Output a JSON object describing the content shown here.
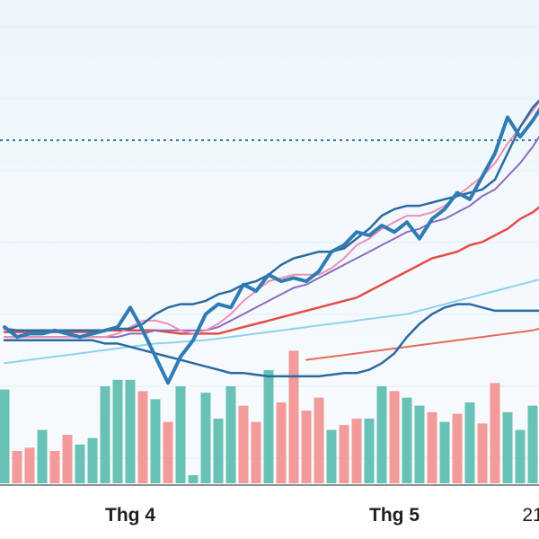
{
  "chart_data": {
    "type": "line",
    "title": "",
    "xlabel": "",
    "ylabel": "",
    "grid": true,
    "x_tick_labels": [
      {
        "label": "Thg 4",
        "index": 10,
        "bold": true
      },
      {
        "label": "Thg 5",
        "index": 31,
        "bold": true
      },
      {
        "label": "21",
        "index": 42,
        "bold": false
      }
    ],
    "price_range": [
      0,
      100
    ],
    "volume_range": [
      0,
      100
    ],
    "reference_level": 86,
    "colors": {
      "price": "#2f7bb3",
      "bollinger": "#2a6aa3",
      "ma_pink": "#ef8fb2",
      "ma_purple": "#8c6bbd",
      "ma_red": "#e54b48",
      "ma_lightblue": "#8fd2ef",
      "ma_coral": "#e86a5e",
      "vol_up": "#68c2b5",
      "vol_down": "#f39a9a",
      "reference": "#2f7bb3"
    },
    "series": [
      {
        "key": "price",
        "width": 4,
        "values": [
          29,
          26,
          27,
          27,
          28,
          27,
          26,
          27,
          28,
          29,
          35,
          28,
          20,
          12,
          20,
          25,
          33,
          36,
          35,
          42,
          40,
          45,
          43,
          44,
          43,
          46,
          52,
          54,
          58,
          57,
          60,
          58,
          61,
          56,
          62,
          65,
          70,
          68,
          75,
          82,
          93,
          87,
          92,
          98
        ]
      },
      {
        "key": "bb_upper",
        "width": 2.5,
        "values": [
          28.5,
          28,
          28,
          28,
          28,
          28,
          28,
          28,
          28,
          28.5,
          28.5,
          30,
          33,
          35,
          36,
          36,
          37,
          39,
          40,
          42,
          43,
          45,
          48,
          50,
          51,
          52,
          52,
          53,
          56,
          59,
          63,
          65,
          66,
          66,
          67,
          68,
          69,
          70,
          71,
          74,
          82,
          90,
          96,
          100
        ]
      },
      {
        "key": "bb_lower",
        "width": 2.5,
        "values": [
          25,
          25,
          25,
          25,
          25,
          25,
          25,
          25,
          24,
          24,
          23,
          22,
          21,
          20,
          19,
          18,
          17,
          16,
          15,
          15,
          14.5,
          14,
          14,
          14,
          14,
          14,
          14.5,
          15,
          15,
          16,
          18,
          21,
          26,
          30,
          33,
          35,
          36,
          36,
          35,
          34,
          34,
          34,
          34,
          34
        ]
      },
      {
        "key": "ma_pink",
        "width": 2,
        "values": [
          26,
          26,
          26,
          26,
          26,
          26,
          26,
          26,
          26,
          27,
          29,
          31,
          31,
          30,
          28,
          27,
          28,
          30,
          33,
          37,
          40,
          43,
          44,
          45,
          45,
          45,
          47,
          50,
          54,
          56,
          59,
          61,
          63,
          63,
          64,
          66,
          69,
          72,
          75,
          79,
          85,
          90,
          95,
          100
        ]
      },
      {
        "key": "ma_purple",
        "width": 2,
        "values": [
          26,
          26,
          26,
          26,
          26,
          26,
          26,
          26,
          26,
          26,
          27,
          27,
          28,
          28,
          28,
          28,
          28,
          29,
          31,
          33,
          35,
          37,
          39,
          41,
          42,
          44,
          46,
          48,
          50,
          52,
          54,
          56,
          58,
          59,
          61,
          62,
          64,
          66,
          69,
          71,
          75,
          79,
          84,
          90
        ]
      },
      {
        "key": "ma_red",
        "width": 2.5,
        "values": [
          27.5,
          27.5,
          27.5,
          27.5,
          27.5,
          27.5,
          27.5,
          27.5,
          28,
          28,
          28,
          28,
          28,
          27.5,
          27,
          27,
          27,
          27,
          28,
          29,
          30,
          31,
          32,
          33,
          34,
          35,
          36,
          37,
          38,
          40,
          42,
          44,
          46,
          48,
          50,
          51,
          52,
          54,
          55,
          57,
          59,
          62,
          64,
          67
        ]
      },
      {
        "key": "ma_lightblue",
        "width": 2,
        "values": [
          18,
          18.5,
          19,
          19.5,
          20,
          20.5,
          21,
          21.5,
          22,
          22.5,
          23,
          23.5,
          24,
          24.2,
          24.5,
          24.8,
          25,
          25.5,
          26,
          26.5,
          27,
          27.5,
          28,
          28.5,
          29,
          29.5,
          30,
          30.5,
          31,
          31.5,
          32,
          32.5,
          33,
          34,
          35,
          36,
          37,
          38,
          39,
          40,
          41,
          42,
          43,
          44
        ]
      },
      {
        "key": "ma_coral",
        "width": 2,
        "start": 24,
        "values": [
          19,
          19.5,
          20,
          20.5,
          21,
          21.5,
          22,
          22.5,
          23,
          23.5,
          24,
          24.5,
          25,
          25.5,
          26,
          26.5,
          27,
          27.5,
          28,
          29
        ]
      }
    ],
    "volume": {
      "values": [
        58,
        20,
        22,
        33,
        20,
        30,
        24,
        28,
        60,
        64,
        64,
        57,
        52,
        38,
        60,
        5,
        56,
        40,
        60,
        48,
        38,
        70,
        50,
        82,
        45,
        53,
        33,
        36,
        40,
        40,
        60,
        57,
        53,
        48,
        44,
        38,
        43,
        50,
        37,
        62,
        44,
        33,
        48,
        38
      ],
      "up": [
        true,
        false,
        false,
        true,
        false,
        false,
        true,
        true,
        true,
        true,
        true,
        false,
        true,
        false,
        true,
        true,
        true,
        true,
        true,
        false,
        false,
        true,
        false,
        false,
        false,
        false,
        true,
        false,
        false,
        true,
        true,
        false,
        true,
        true,
        false,
        true,
        false,
        true,
        false,
        false,
        true,
        true,
        true,
        false
      ]
    }
  }
}
